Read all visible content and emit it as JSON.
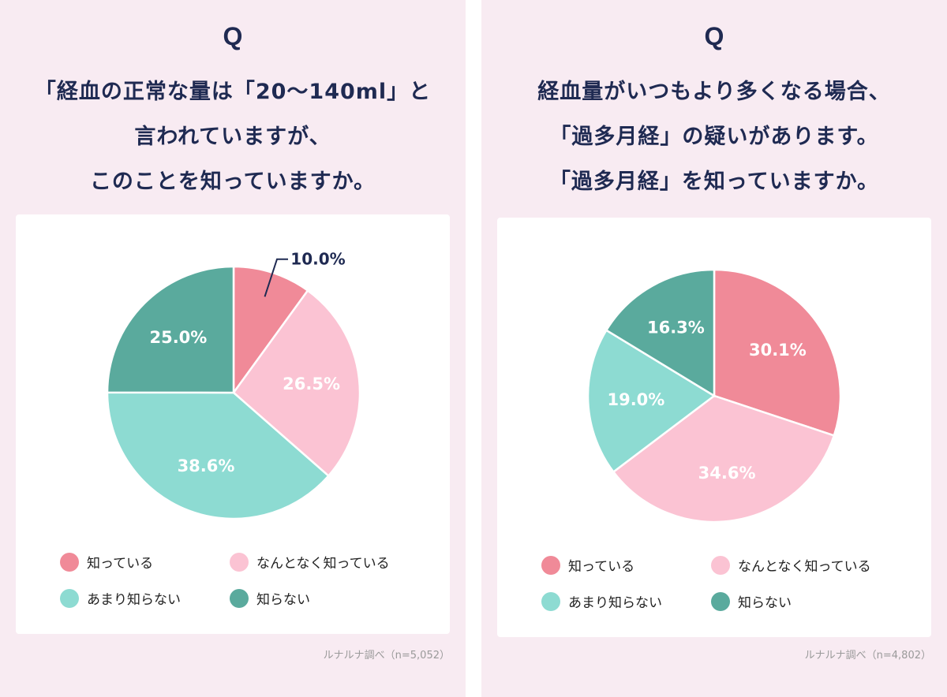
{
  "colors": {
    "panel_bg": "#f8ebf2",
    "card_bg": "#ffffff",
    "title_text": "#1f2a52",
    "label_text": "#ffffff"
  },
  "left": {
    "q": "Q",
    "question_lines": [
      "「経血の正常な量は「20～140ml」と",
      "言われていますが、",
      "このことを知っていますか。"
    ],
    "source": "ルナルナ調べ（n=5,052）"
  },
  "right": {
    "q": "Q",
    "question_lines": [
      "経血量がいつもより多くなる場合、",
      "「過多月経」の疑いがあります。",
      "「過多月経」を知っていますか。"
    ],
    "source": "ルナルナ調べ（n=4,802）"
  },
  "chart_data": [
    {
      "type": "pie",
      "title": "",
      "series": [
        {
          "label": "知っている",
          "value": 10.0,
          "display": "10.0%",
          "color": "#f08a98"
        },
        {
          "label": "なんとなく知っている",
          "value": 26.5,
          "display": "26.5%",
          "color": "#fbc3d3"
        },
        {
          "label": "あまり知らない",
          "value": 38.6,
          "display": "38.6%",
          "color": "#8ddbd2"
        },
        {
          "label": "知らない",
          "value": 25.0,
          "display": "25.0%",
          "color": "#5aaa9d"
        }
      ],
      "start": "12 o'clock",
      "direction": "clockwise",
      "legend_position": "bottom"
    },
    {
      "type": "pie",
      "title": "",
      "series": [
        {
          "label": "知っている",
          "value": 30.1,
          "display": "30.1%",
          "color": "#f08a98"
        },
        {
          "label": "なんとなく知っている",
          "value": 34.6,
          "display": "34.6%",
          "color": "#fbc3d3"
        },
        {
          "label": "あまり知らない",
          "value": 19.0,
          "display": "19.0%",
          "color": "#8ddbd2"
        },
        {
          "label": "知らない",
          "value": 16.3,
          "display": "16.3%",
          "color": "#5aaa9d"
        }
      ],
      "start": "12 o'clock",
      "direction": "clockwise",
      "legend_position": "bottom"
    }
  ]
}
